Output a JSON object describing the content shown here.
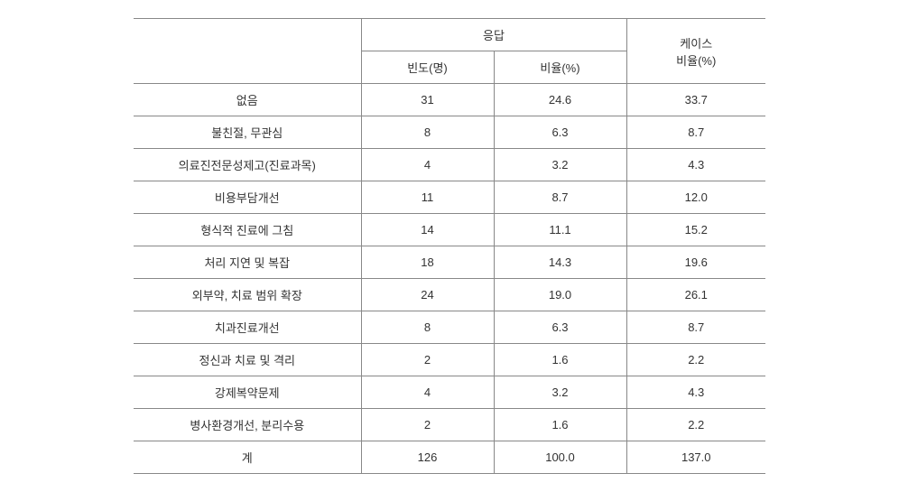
{
  "table": {
    "header": {
      "response_group": "응답",
      "frequency": "빈도(명)",
      "percentage": "비율(%)",
      "case_percentage": "케이스\n비율(%)"
    },
    "rows": [
      {
        "label": "없음",
        "frequency": "31",
        "percentage": "24.6",
        "case_pct": "33.7"
      },
      {
        "label": "불친절, 무관심",
        "frequency": "8",
        "percentage": "6.3",
        "case_pct": "8.7"
      },
      {
        "label": "의료진전문성제고(진료과목)",
        "frequency": "4",
        "percentage": "3.2",
        "case_pct": "4.3"
      },
      {
        "label": "비용부담개선",
        "frequency": "11",
        "percentage": "8.7",
        "case_pct": "12.0"
      },
      {
        "label": "형식적 진료에 그침",
        "frequency": "14",
        "percentage": "11.1",
        "case_pct": "15.2"
      },
      {
        "label": "처리 지연 및 복잡",
        "frequency": "18",
        "percentage": "14.3",
        "case_pct": "19.6"
      },
      {
        "label": "외부약, 치료 범위 확장",
        "frequency": "24",
        "percentage": "19.0",
        "case_pct": "26.1"
      },
      {
        "label": "치과진료개선",
        "frequency": "8",
        "percentage": "6.3",
        "case_pct": "8.7"
      },
      {
        "label": "정신과 치료 및 격리",
        "frequency": "2",
        "percentage": "1.6",
        "case_pct": "2.2"
      },
      {
        "label": "강제복약문제",
        "frequency": "4",
        "percentage": "3.2",
        "case_pct": "4.3"
      },
      {
        "label": "병사환경개선, 분리수용",
        "frequency": "2",
        "percentage": "1.6",
        "case_pct": "2.2"
      },
      {
        "label": "계",
        "frequency": "126",
        "percentage": "100.0",
        "case_pct": "137.0"
      }
    ],
    "style": {
      "border_color": "#888888",
      "text_color": "#333333",
      "font_size": 13,
      "background_color": "#ffffff"
    }
  }
}
